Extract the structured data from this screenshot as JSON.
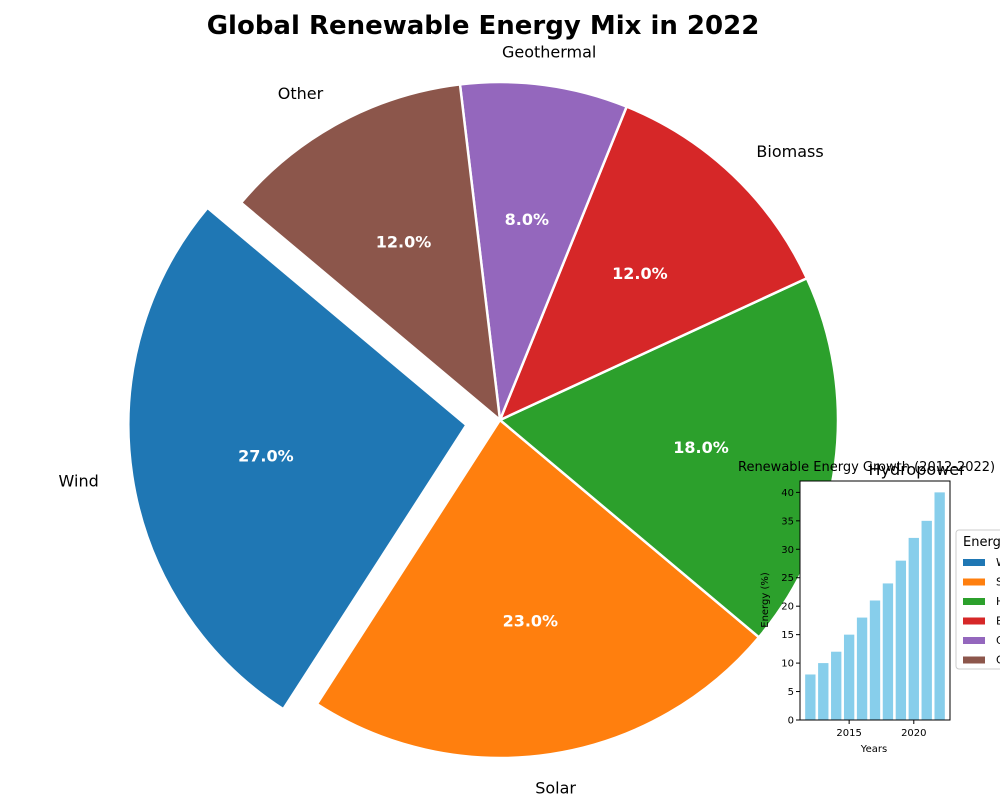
{
  "chart_data": [
    {
      "type": "pie",
      "title": "Global Renewable Energy Mix in 2022",
      "categories": [
        "Wind",
        "Solar",
        "Hydropower",
        "Biomass",
        "Geothermal",
        "Other"
      ],
      "values": [
        27.0,
        23.0,
        18.0,
        12.0,
        8.0,
        12.0
      ],
      "value_labels": [
        "27.0%",
        "23.0%",
        "18.0%",
        "12.0%",
        "8.0%",
        "12.0%"
      ],
      "colors": [
        "#1f77b4",
        "#ff7f0e",
        "#2ca02c",
        "#d62728",
        "#9467bd",
        "#8c564b"
      ],
      "exploded": [
        "Wind"
      ]
    },
    {
      "type": "bar",
      "title": "Renewable Energy Growth (2012-2022)",
      "xlabel": "Years",
      "ylabel": "Energy (%)",
      "x": [
        2012,
        2013,
        2014,
        2015,
        2016,
        2017,
        2018,
        2019,
        2020,
        2021,
        2022
      ],
      "values": [
        8,
        10,
        12,
        15,
        18,
        21,
        24,
        28,
        32,
        35,
        40
      ],
      "color": "#87ceeb",
      "ylim": [
        0,
        42
      ],
      "yticks": [
        0,
        5,
        10,
        15,
        20,
        25,
        30,
        35,
        40
      ],
      "xticks": [
        2015,
        2020
      ],
      "legend": {
        "title": "Energ",
        "entries": [
          "W",
          "S",
          "H",
          "B",
          "G",
          "O"
        ],
        "colors": [
          "#1f77b4",
          "#ff7f0e",
          "#2ca02c",
          "#d62728",
          "#9467bd",
          "#8c564b"
        ]
      }
    }
  ]
}
